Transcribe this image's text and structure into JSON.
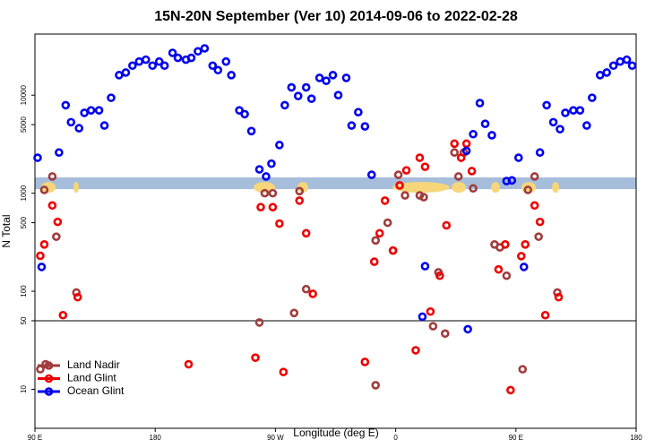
{
  "chart_data": {
    "type": "scatter",
    "title": "15N-20N September (Ver 10)   2014-09-06 to 2022-02-28",
    "xlabel": "Longitude (deg E)",
    "ylabel": "N Total",
    "xlim": [
      90,
      540
    ],
    "xticks": [
      {
        "value": 90,
        "label": "90 E"
      },
      {
        "value": 180,
        "label": "180"
      },
      {
        "value": 270,
        "label": "90 W"
      },
      {
        "value": 360,
        "label": "0"
      },
      {
        "value": 450,
        "label": "90 E"
      },
      {
        "value": 540,
        "label": "180"
      }
    ],
    "ylim": [
      4,
      42000
    ],
    "log_y": true,
    "yticks": [
      10,
      50,
      100,
      500,
      1000,
      5000,
      10000
    ],
    "hline": 50,
    "band": [
      1100,
      1450
    ],
    "band_color": "#a6bedb",
    "legend": "bottom-left",
    "series": [
      {
        "name": "Land Nadir",
        "color": "#a03c3c",
        "x": [
          94,
          98,
          97,
          103,
          106,
          121,
          258,
          262,
          268,
          284,
          288,
          293,
          345,
          345,
          354,
          358,
          362,
          367,
          378,
          381,
          388,
          392,
          397,
          404,
          407,
          411,
          418,
          434,
          438,
          443,
          455,
          459,
          464,
          467,
          481
        ],
        "values": [
          16,
          18,
          1080,
          1480,
          360,
          97,
          48,
          1000,
          1000,
          60,
          1050,
          105,
          11,
          330,
          500,
          260,
          1540,
          950,
          950,
          910,
          44,
          156,
          37,
          2600,
          1480,
          2600,
          1120,
          300,
          280,
          144,
          16,
          1080,
          1480,
          360,
          97
        ]
      },
      {
        "name": "Land Glint",
        "color": "#ee0000",
        "x": [
          94,
          97,
          103,
          107,
          111,
          122,
          205,
          255,
          259,
          268,
          273,
          276,
          288,
          293,
          298,
          337,
          344,
          348,
          352,
          358,
          363,
          368,
          375,
          378,
          382,
          386,
          393,
          398,
          404,
          409,
          413,
          417,
          437,
          442,
          446,
          454,
          457,
          464,
          468,
          472,
          482
        ],
        "values": [
          230,
          300,
          750,
          510,
          57,
          87,
          18,
          21,
          720,
          720,
          490,
          15,
          840,
          390,
          94,
          19,
          200,
          390,
          840,
          260,
          1200,
          1710,
          25,
          2300,
          1860,
          62,
          144,
          470,
          3200,
          2300,
          3200,
          1680,
          167,
          300,
          9.8,
          228,
          300,
          750,
          510,
          57,
          87
        ]
      },
      {
        "name": "Ocean Glint",
        "color": "#0000ee",
        "x": [
          92,
          95,
          108,
          113,
          117,
          123,
          127,
          132,
          138,
          142,
          147,
          153,
          158,
          163,
          168,
          173,
          178,
          183,
          187,
          193,
          197,
          203,
          207,
          212,
          217,
          223,
          227,
          233,
          237,
          243,
          247,
          252,
          258,
          263,
          267,
          273,
          277,
          282,
          287,
          293,
          297,
          303,
          308,
          313,
          317,
          323,
          327,
          332,
          337,
          342,
          380,
          382,
          414,
          413,
          418,
          423,
          427,
          432,
          443,
          447,
          452,
          456,
          468,
          473,
          478,
          483,
          487,
          493,
          498,
          503,
          507,
          513,
          518,
          523,
          528,
          533,
          537
        ],
        "values": [
          2300,
          177,
          2600,
          7900,
          5300,
          4600,
          6600,
          7000,
          7000,
          4900,
          9400,
          16000,
          17000,
          20000,
          22000,
          23000,
          20000,
          22000,
          20000,
          27000,
          24000,
          23000,
          24000,
          28000,
          30000,
          20000,
          18000,
          22000,
          16000,
          7000,
          6400,
          4300,
          1750,
          1480,
          2000,
          3100,
          7900,
          12000,
          9800,
          12000,
          9200,
          15000,
          14000,
          16000,
          10000,
          15000,
          4900,
          6700,
          4800,
          1540,
          55,
          180,
          41,
          2700,
          4000,
          8300,
          5100,
          3900,
          1330,
          1350,
          2300,
          177,
          2600,
          7900,
          5300,
          4500,
          6600,
          7000,
          7000,
          4900,
          9400,
          16000,
          17000,
          20000,
          22000,
          23000,
          20000
        ]
      }
    ]
  }
}
